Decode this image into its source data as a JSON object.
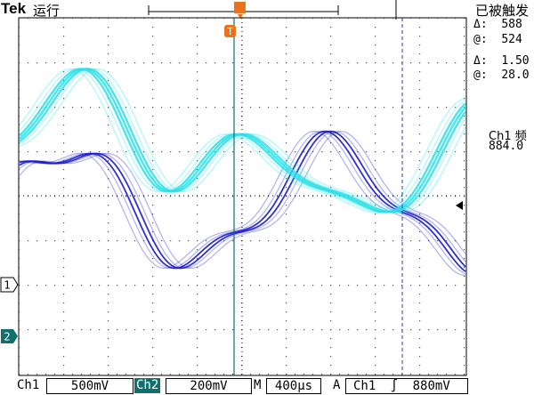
{
  "header": {
    "brand": "Tek",
    "run_state": "运行",
    "trigger_state": "已被触发",
    "trigger_marker": "T"
  },
  "cursor_readouts": {
    "delta_time_label": "Δ:",
    "delta_time_value": "588",
    "at_time_label": "@:",
    "at_time_value": "524",
    "delta_volt_label": "Δ:",
    "delta_volt_value": "1.50",
    "at_volt_label": "@:",
    "at_volt_value": "28.0"
  },
  "measurement": {
    "label": "Ch1 频",
    "value": "884.0"
  },
  "channel_markers": {
    "ch1": "1",
    "ch2": "2"
  },
  "bottom_bar": {
    "ch1_label": "Ch1",
    "ch1_scale": "500mV",
    "ch2_label": "Ch2",
    "ch2_scale": "200mV",
    "timebase_label": "M",
    "timebase": "400µs",
    "trigger_mode": "A",
    "trigger_source": "Ch1",
    "trigger_slope": "∫",
    "trigger_level": "880mV"
  },
  "colors": {
    "ch1": "#1a1ad0",
    "ch2": "#2ae0e8",
    "trigger": "#e8741e",
    "cursor": "#1c3cc8",
    "marker": "#11706e"
  }
}
